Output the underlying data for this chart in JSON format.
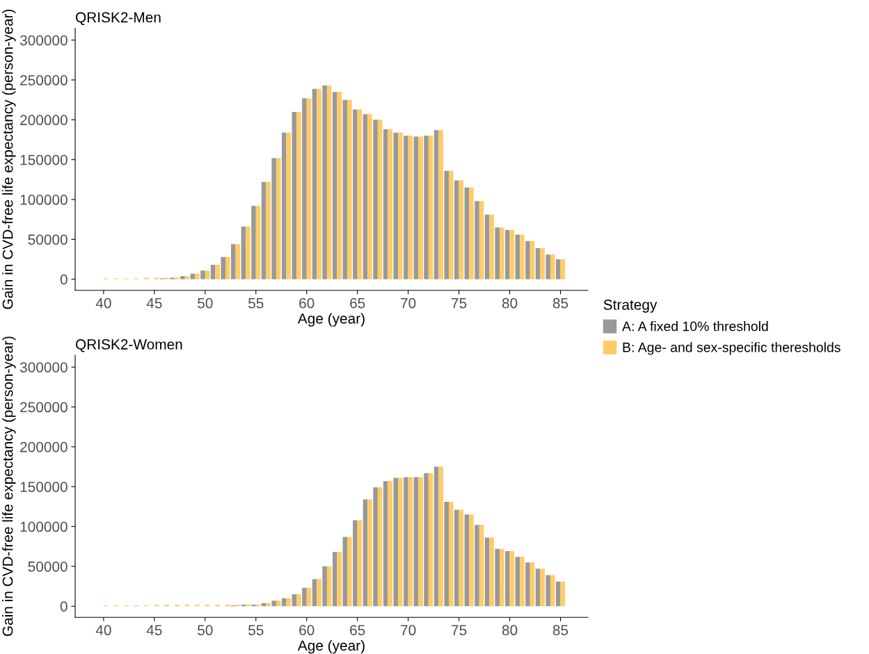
{
  "chart_data": [
    {
      "type": "bar",
      "title": "QRISK2-Men",
      "xlabel": "Age (year)",
      "ylabel": "Gain in CVD-free life expectancy (person-year)",
      "legend_title": "Strategy",
      "legend": "right",
      "grid": false,
      "x": [
        40,
        41,
        42,
        43,
        44,
        45,
        46,
        47,
        48,
        49,
        50,
        51,
        52,
        53,
        54,
        55,
        56,
        57,
        58,
        59,
        60,
        61,
        62,
        63,
        64,
        65,
        66,
        67,
        68,
        69,
        70,
        71,
        72,
        73,
        74,
        75,
        76,
        77,
        78,
        79,
        80,
        81,
        82,
        83,
        84,
        85
      ],
      "xlim": [
        37.2,
        87.7
      ],
      "xticks": [
        40,
        45,
        50,
        55,
        60,
        65,
        70,
        75,
        80,
        85
      ],
      "ylim": [
        -14000,
        315000
      ],
      "yticks": [
        0,
        50000,
        100000,
        150000,
        200000,
        250000,
        300000
      ],
      "series": [
        {
          "name": "A: A fixed 10% threshold",
          "color": "#999999",
          "values": [
            null,
            null,
            null,
            null,
            null,
            null,
            1000,
            2000,
            4000,
            7000,
            11000,
            18000,
            28000,
            44000,
            66000,
            92000,
            122000,
            152000,
            184000,
            210000,
            227000,
            239000,
            243000,
            235000,
            225000,
            213000,
            207000,
            200000,
            188000,
            184000,
            180000,
            179000,
            180000,
            187000,
            136000,
            124000,
            115000,
            98000,
            81000,
            65000,
            62000,
            56000,
            48000,
            39000,
            31000,
            25000
          ]
        },
        {
          "name": "B: Age- and sex-specific theresholds",
          "color": "#ffcc66",
          "values": [
            1000,
            1000,
            1000,
            1000,
            2000,
            2000,
            2000,
            2000,
            4000,
            7000,
            11000,
            18000,
            28000,
            44000,
            66000,
            92000,
            122000,
            152000,
            184000,
            210000,
            227000,
            239000,
            243000,
            235000,
            225000,
            213000,
            207000,
            200000,
            188000,
            184000,
            180000,
            179000,
            180000,
            187000,
            136000,
            124000,
            115000,
            98000,
            81000,
            65000,
            62000,
            56000,
            48000,
            39000,
            31000,
            25000
          ]
        }
      ]
    },
    {
      "type": "bar",
      "title": "QRISK2-Women",
      "xlabel": "Age (year)",
      "ylabel": "Gain in CVD-free life expectancy (person-year)",
      "grid": false,
      "x": [
        40,
        41,
        42,
        43,
        44,
        45,
        46,
        47,
        48,
        49,
        50,
        51,
        52,
        53,
        54,
        55,
        56,
        57,
        58,
        59,
        60,
        61,
        62,
        63,
        64,
        65,
        66,
        67,
        68,
        69,
        70,
        71,
        72,
        73,
        74,
        75,
        76,
        77,
        78,
        79,
        80,
        81,
        82,
        83,
        84,
        85
      ],
      "xlim": [
        37.2,
        87.7
      ],
      "xticks": [
        40,
        45,
        50,
        55,
        60,
        65,
        70,
        75,
        80,
        85
      ],
      "ylim": [
        -14000,
        315000
      ],
      "yticks": [
        0,
        50000,
        100000,
        150000,
        200000,
        250000,
        300000
      ],
      "series": [
        {
          "name": "A: A fixed 10% threshold",
          "color": "#999999",
          "values": [
            null,
            null,
            null,
            null,
            null,
            null,
            null,
            null,
            null,
            null,
            null,
            null,
            null,
            1000,
            2000,
            2000,
            4000,
            7000,
            10000,
            15000,
            23000,
            34000,
            50000,
            68000,
            87000,
            108000,
            134000,
            149000,
            157000,
            161000,
            162000,
            162000,
            167000,
            175000,
            131000,
            121000,
            115000,
            102000,
            86000,
            72000,
            69000,
            62000,
            55000,
            47000,
            39000,
            31000
          ]
        },
        {
          "name": "B: Age- and sex-specific theresholds",
          "color": "#ffcc66",
          "values": [
            1000,
            1000,
            1000,
            1000,
            1000,
            2000,
            2000,
            2000,
            2000,
            2000,
            2000,
            2000,
            2000,
            2000,
            2000,
            2000,
            4000,
            7000,
            10000,
            15000,
            23000,
            34000,
            50000,
            68000,
            87000,
            108000,
            134000,
            149000,
            157000,
            161000,
            162000,
            162000,
            167000,
            175000,
            131000,
            121000,
            115000,
            102000,
            86000,
            72000,
            69000,
            62000,
            55000,
            47000,
            39000,
            31000
          ]
        }
      ]
    }
  ]
}
